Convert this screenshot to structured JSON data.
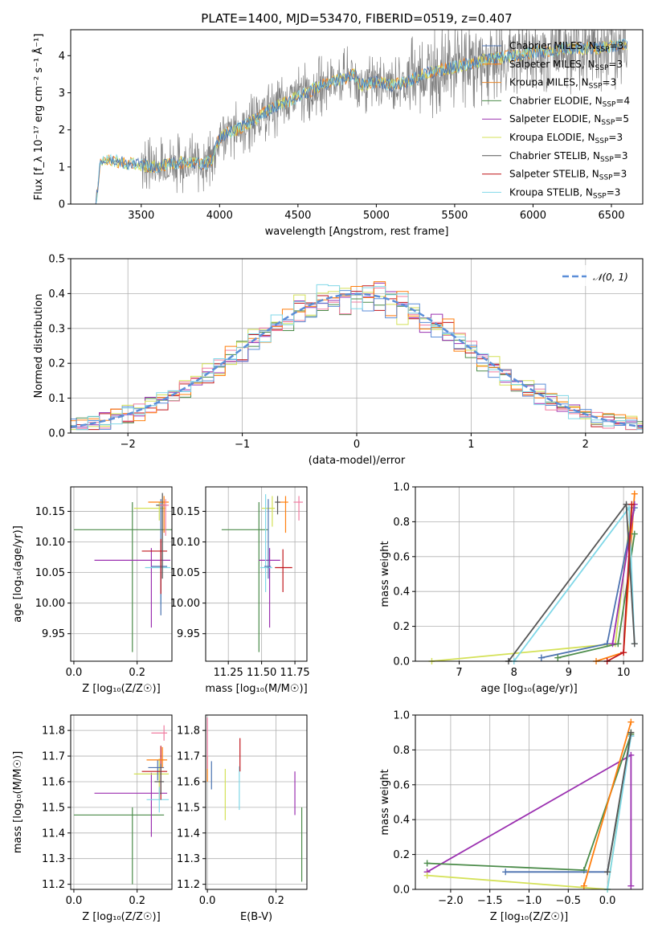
{
  "figure_title": "PLATE=1400, MJD=53470, FIBERID=0519, z=0.407",
  "colors": {
    "data": "#808080",
    "Chabrier MILES": "#4c72b0",
    "Salpeter MILES": "#ff7f0e",
    "Kroupa MILES": "#e8862a",
    "Chabrier ELODIE": "#4c8c4a",
    "Salpeter ELODIE": "#9b30b0",
    "Kroupa ELODIE": "#d4e157",
    "Chabrier STELIB": "#555555",
    "Salpeter STELIB": "#c0161c",
    "Kroupa STELIB": "#80d8e8",
    "gaussian": "#5b8ed8",
    "pink": "#f07ca0"
  },
  "chart_data": [
    {
      "id": "spectrum",
      "type": "line",
      "title": "PLATE=1400, MJD=53470, FIBERID=0519, z=0.407",
      "xlabel": "wavelength [Angstrom, rest frame]",
      "ylabel": "Flux [f_λ 10⁻¹⁷ erg cm⁻² s⁻¹ Å⁻¹]",
      "xlim": [
        3050,
        6700
      ],
      "ylim": [
        0,
        4.7
      ],
      "xticks": [
        3500,
        4000,
        4500,
        5000,
        5500,
        6000,
        6500
      ],
      "yticks": [
        0,
        1,
        2,
        3,
        4
      ],
      "legend_position": "upper right",
      "legend": [
        {
          "label": "Chabrier MILES, N",
          "sub": "SSP",
          "suffix": "=3"
        },
        {
          "label": "Salpeter MILES, N",
          "sub": "SSP",
          "suffix": "=3"
        },
        {
          "label": "Kroupa MILES, N",
          "sub": "SSP",
          "suffix": "=3"
        },
        {
          "label": "Chabrier ELODIE, N",
          "sub": "SSP",
          "suffix": "=4"
        },
        {
          "label": "Salpeter ELODIE, N",
          "sub": "SSP",
          "suffix": "=5"
        },
        {
          "label": "Kroupa ELODIE, N",
          "sub": "SSP",
          "suffix": "=3"
        },
        {
          "label": "Chabrier STELIB, N",
          "sub": "SSP",
          "suffix": "=3"
        },
        {
          "label": "Salpeter STELIB, N",
          "sub": "SSP",
          "suffix": "=3"
        },
        {
          "label": "Kroupa STELIB, N",
          "sub": "SSP",
          "suffix": "=3"
        }
      ],
      "continuum": {
        "x": [
          3210,
          3240,
          3300,
          3400,
          3500,
          3600,
          3700,
          3800,
          3900,
          3950,
          4000,
          4100,
          4200,
          4300,
          4400,
          4500,
          4600,
          4700,
          4800,
          4860,
          4900,
          5000,
          5100,
          5200,
          5300,
          5400,
          5500,
          5600,
          5700,
          5800,
          5900,
          6000,
          6100,
          6200,
          6300,
          6400,
          6500,
          6600
        ],
        "y": [
          0,
          1.15,
          1.2,
          1.1,
          1.05,
          1.0,
          1.1,
          1.15,
          1.05,
          1.2,
          1.8,
          2.0,
          2.2,
          2.5,
          2.7,
          2.9,
          3.1,
          3.3,
          3.4,
          3.5,
          3.2,
          3.3,
          3.2,
          3.3,
          3.5,
          3.6,
          3.7,
          3.8,
          3.9,
          3.95,
          4.0,
          4.1,
          4.1,
          4.2,
          4.2,
          4.2,
          4.25,
          4.3
        ]
      }
    },
    {
      "id": "residuals",
      "type": "line",
      "xlabel": "(data-model)/error",
      "ylabel": "Normed distribution",
      "xlim": [
        -2.5,
        2.5
      ],
      "ylim": [
        0,
        0.5
      ],
      "xticks": [
        -2,
        -1,
        0,
        1,
        2
      ],
      "yticks": [
        0.0,
        0.1,
        0.2,
        0.3,
        0.4,
        0.5
      ],
      "grid": true,
      "legend_position": "upper right",
      "legend": [
        {
          "label": "𝒩(0, 1)"
        }
      ],
      "gaussian": {
        "mean": 0,
        "sigma": 1
      }
    },
    {
      "id": "age_vs_Z",
      "type": "scatter",
      "xlabel": "Z [log₁₀(Z/Z☉)]",
      "ylabel": "age  [log₁₀(age/yr)]",
      "xlim": [
        -0.01,
        0.31
      ],
      "ylim": [
        9.905,
        10.19
      ],
      "xticks": [
        0.0,
        0.2
      ],
      "yticks": [
        9.95,
        10.0,
        10.05,
        10.1,
        10.15
      ],
      "grid": true,
      "points": [
        {
          "c": "Chabrier ELODIE",
          "x": 0.185,
          "y": 10.12,
          "xe": [
            0.185,
            0.185
          ],
          "ye": [
            0.2,
            0.045
          ]
        },
        {
          "c": "Salpeter ELODIE",
          "x": 0.245,
          "y": 10.07,
          "xe": [
            0.18,
            0.06
          ],
          "ye": [
            0.11,
            0.02
          ]
        },
        {
          "c": "Kroupa ELODIE",
          "x": 0.27,
          "y": 10.155,
          "xe": [
            0.08,
            0.02
          ],
          "ye": [
            0.02,
            0.01
          ]
        },
        {
          "c": "Kroupa STELIB",
          "x": 0.275,
          "y": 10.058,
          "xe": [
            0.05,
            0.03
          ],
          "ye": [
            0.06,
            0.02
          ]
        },
        {
          "c": "Chabrier MILES",
          "x": 0.275,
          "y": 10.06,
          "xe": [
            0.03,
            0.02
          ],
          "ye": [
            0.08,
            0.11
          ]
        },
        {
          "c": "Salpeter STELIB",
          "x": 0.275,
          "y": 10.085,
          "xe": [
            0.06,
            0.02
          ],
          "ye": [
            0.07,
            0.02
          ]
        },
        {
          "c": "Salpeter MILES",
          "x": 0.285,
          "y": 10.165,
          "xe": [
            0.05,
            0.015
          ],
          "ye": [
            0.05,
            0.01
          ]
        },
        {
          "c": "Chabrier STELIB",
          "x": 0.28,
          "y": 10.16,
          "xe": [
            0.02,
            0.01
          ],
          "ye": [
            0.12,
            0.02
          ]
        },
        {
          "c": "pink",
          "x": 0.29,
          "y": 10.16,
          "xe": [
            0.02,
            0.01
          ],
          "ye": [
            0.05,
            0.01
          ]
        }
      ]
    },
    {
      "id": "age_vs_mass",
      "type": "scatter",
      "xlabel": "mass [log₁₀(M/M☉)]",
      "ylabel": "",
      "xlim": [
        11.08,
        11.84
      ],
      "ylim": [
        9.905,
        10.19
      ],
      "xticks": [
        11.25,
        11.5,
        11.75
      ],
      "yticks": [
        9.95,
        10.0,
        10.05,
        10.1,
        10.15
      ],
      "grid": true,
      "points": [
        {
          "c": "Chabrier ELODIE",
          "x": 11.48,
          "y": 10.12,
          "xe": [
            0.28,
            0.07
          ],
          "ye": [
            0.2,
            0.045
          ]
        },
        {
          "c": "Salpeter ELODIE",
          "x": 11.56,
          "y": 10.07,
          "xe": [
            0.08,
            0.08
          ],
          "ye": [
            0.11,
            0.02
          ]
        },
        {
          "c": "Kroupa ELODIE",
          "x": 11.58,
          "y": 10.155,
          "xe": [
            0.08,
            0.02
          ],
          "ye": [
            0.03,
            0.02
          ]
        },
        {
          "c": "Kroupa STELIB",
          "x": 11.53,
          "y": 10.058,
          "xe": [
            0.04,
            0.05
          ],
          "ye": [
            0.04,
            0.12
          ]
        },
        {
          "c": "Chabrier MILES",
          "x": 11.55,
          "y": 10.06,
          "xe": [
            0.03,
            0.02
          ],
          "ye": [
            0.02,
            0.11
          ]
        },
        {
          "c": "Salpeter STELIB",
          "x": 11.66,
          "y": 10.058,
          "xe": [
            0.06,
            0.07
          ],
          "ye": [
            0.04,
            0.03
          ]
        },
        {
          "c": "Salpeter MILES",
          "x": 11.68,
          "y": 10.165,
          "xe": [
            0.06,
            0.02
          ],
          "ye": [
            0.05,
            0.01
          ]
        },
        {
          "c": "Chabrier STELIB",
          "x": 11.62,
          "y": 10.165,
          "xe": [
            0.02,
            0.02
          ],
          "ye": [
            0.02,
            0.01
          ]
        },
        {
          "c": "pink",
          "x": 11.78,
          "y": 10.165,
          "xe": [
            0.04,
            0.03
          ],
          "ye": [
            0.03,
            0.01
          ]
        }
      ]
    },
    {
      "id": "weight_vs_age",
      "type": "line",
      "xlabel": "age  [log₁₀(age/yr)]",
      "ylabel": "mass weight",
      "xlim": [
        6.2,
        10.35
      ],
      "ylim": [
        0,
        1.0
      ],
      "xticks": [
        7,
        8,
        9,
        10
      ],
      "yticks": [
        0.0,
        0.2,
        0.4,
        0.6,
        0.8,
        1.0
      ],
      "grid": true,
      "series": [
        {
          "c": "Kroupa ELODIE",
          "x": [
            6.5,
            9.85,
            10.15
          ],
          "y": [
            0.0,
            0.1,
            0.9
          ]
        },
        {
          "c": "Chabrier MILES",
          "x": [
            8.5,
            9.7,
            10.2
          ],
          "y": [
            0.02,
            0.1,
            0.88
          ]
        },
        {
          "c": "Salpeter MILES",
          "x": [
            9.5,
            10.0,
            10.2
          ],
          "y": [
            0.0,
            0.05,
            0.96
          ]
        },
        {
          "c": "Chabrier ELODIE",
          "x": [
            8.8,
            9.9,
            10.2
          ],
          "y": [
            0.02,
            0.1,
            0.73
          ]
        },
        {
          "c": "Salpeter ELODIE",
          "x": [
            9.8,
            10.2
          ],
          "y": [
            0.1,
            0.9
          ]
        },
        {
          "c": "Kroupa STELIB",
          "x": [
            8.0,
            10.1,
            10.2
          ],
          "y": [
            0.0,
            0.88,
            0.1
          ]
        },
        {
          "c": "Chabrier STELIB",
          "x": [
            7.9,
            10.05,
            10.2
          ],
          "y": [
            0.0,
            0.9,
            0.1
          ]
        },
        {
          "c": "Salpeter STELIB",
          "x": [
            9.7,
            10.0,
            10.15
          ],
          "y": [
            0.0,
            0.05,
            0.9
          ]
        }
      ]
    },
    {
      "id": "mass_vs_Z",
      "type": "scatter",
      "xlabel": "Z [log₁₀(Z/Z☉)]",
      "ylabel": "mass [log₁₀(M/M☉)]",
      "xlim": [
        -0.01,
        0.31
      ],
      "ylim": [
        11.18,
        11.86
      ],
      "xticks": [
        0.0,
        0.2
      ],
      "yticks": [
        11.2,
        11.3,
        11.4,
        11.5,
        11.6,
        11.7,
        11.8
      ],
      "grid": true,
      "points": [
        {
          "c": "Chabrier ELODIE",
          "x": 0.185,
          "y": 11.47,
          "xe": [
            0.185,
            0.1
          ],
          "ye": [
            0.27,
            0.03
          ]
        },
        {
          "c": "Salpeter ELODIE",
          "x": 0.245,
          "y": 11.555,
          "xe": [
            0.18,
            0.05
          ],
          "ye": [
            0.17,
            0.08
          ]
        },
        {
          "c": "Kroupa ELODIE",
          "x": 0.27,
          "y": 11.63,
          "xe": [
            0.08,
            0.03
          ],
          "ye": [
            0.1,
            0.06
          ]
        },
        {
          "c": "Kroupa STELIB",
          "x": 0.27,
          "y": 11.53,
          "xe": [
            0.04,
            0.03
          ],
          "ye": [
            0.05,
            0.05
          ]
        },
        {
          "c": "Chabrier MILES",
          "x": 0.265,
          "y": 11.655,
          "xe": [
            0.03,
            0.02
          ],
          "ye": [
            0.05,
            0.03
          ]
        },
        {
          "c": "Salpeter STELIB",
          "x": 0.275,
          "y": 11.64,
          "xe": [
            0.06,
            0.02
          ],
          "ye": [
            0.11,
            0.1
          ]
        },
        {
          "c": "Salpeter MILES",
          "x": 0.28,
          "y": 11.685,
          "xe": [
            0.05,
            0.015
          ],
          "ye": [
            0.03,
            0.05
          ]
        },
        {
          "c": "Chabrier STELIB",
          "x": 0.275,
          "y": 11.6,
          "xe": [
            0.02,
            0.01
          ],
          "ye": [
            0.05,
            0.07
          ]
        },
        {
          "c": "pink",
          "x": 0.285,
          "y": 11.79,
          "xe": [
            0.04,
            0.01
          ],
          "ye": [
            0.03,
            0.03
          ]
        }
      ]
    },
    {
      "id": "mass_vs_EBV",
      "type": "scatter",
      "xlabel": "E(B-V)",
      "ylabel": "",
      "xlim": [
        -0.005,
        0.29
      ],
      "ylim": [
        11.18,
        11.86
      ],
      "xticks": [
        0.0,
        0.2
      ],
      "yticks": [
        11.2,
        11.3,
        11.4,
        11.5,
        11.6,
        11.7,
        11.8
      ],
      "grid": true,
      "points": [
        {
          "c": "Salpeter MILES",
          "x": 0.0,
          "y": 11.62,
          "xe": [
            0,
            0
          ],
          "ye": [
            0.02,
            0.08
          ]
        },
        {
          "c": "pink",
          "x": 0.0,
          "y": 11.75,
          "xe": [
            0,
            0
          ],
          "ye": [
            0.1,
            0.1
          ]
        },
        {
          "c": "Chabrier MILES",
          "x": 0.012,
          "y": 11.62,
          "xe": [
            0,
            0
          ],
          "ye": [
            0.05,
            0.06
          ]
        },
        {
          "c": "Kroupa ELODIE",
          "x": 0.052,
          "y": 11.55,
          "xe": [
            0,
            0
          ],
          "ye": [
            0.1,
            0.1
          ]
        },
        {
          "c": "Kroupa STELIB",
          "x": 0.093,
          "y": 11.57,
          "xe": [
            0,
            0
          ],
          "ye": [
            0.08,
            0.09
          ]
        },
        {
          "c": "Salpeter STELIB",
          "x": 0.095,
          "y": 11.7,
          "xe": [
            0,
            0
          ],
          "ye": [
            0.06,
            0.07
          ]
        },
        {
          "c": "Salpeter ELODIE",
          "x": 0.255,
          "y": 11.56,
          "xe": [
            0,
            0
          ],
          "ye": [
            0.09,
            0.08
          ]
        },
        {
          "c": "Chabrier ELODIE",
          "x": 0.275,
          "y": 11.35,
          "xe": [
            0,
            0
          ],
          "ye": [
            0.14,
            0.15
          ]
        }
      ]
    },
    {
      "id": "weight_vs_Z",
      "type": "line",
      "xlabel": "Z [log₁₀(Z/Z☉)]",
      "ylabel": "mass weight",
      "xlim": [
        -2.45,
        0.45
      ],
      "ylim": [
        0,
        1.0
      ],
      "xticks": [
        -2.0,
        -1.5,
        -1.0,
        -0.5,
        0.0
      ],
      "yticks": [
        0.0,
        0.2,
        0.4,
        0.6,
        0.8,
        1.0
      ],
      "grid": true,
      "series": [
        {
          "c": "Salpeter ELODIE",
          "x": [
            -2.3,
            0.3,
            0.3
          ],
          "y": [
            0.1,
            0.77,
            0.02
          ]
        },
        {
          "c": "Chabrier ELODIE",
          "x": [
            -2.3,
            -0.3,
            0.3
          ],
          "y": [
            0.15,
            0.11,
            0.89
          ]
        },
        {
          "c": "Chabrier MILES",
          "x": [
            -1.3,
            0.0,
            0.3
          ],
          "y": [
            0.1,
            0.1,
            0.88
          ]
        },
        {
          "c": "Kroupa ELODIE",
          "x": [
            -2.3,
            0.0,
            0.3
          ],
          "y": [
            0.08,
            0.0,
            0.9
          ]
        },
        {
          "c": "Salpeter MILES",
          "x": [
            -0.3,
            0.3
          ],
          "y": [
            0.02,
            0.96
          ]
        },
        {
          "c": "Kroupa STELIB",
          "x": [
            0.0,
            0.3
          ],
          "y": [
            0.0,
            0.88
          ]
        },
        {
          "c": "Chabrier STELIB",
          "x": [
            0.0,
            0.3
          ],
          "y": [
            0.1,
            0.9
          ]
        }
      ]
    }
  ]
}
